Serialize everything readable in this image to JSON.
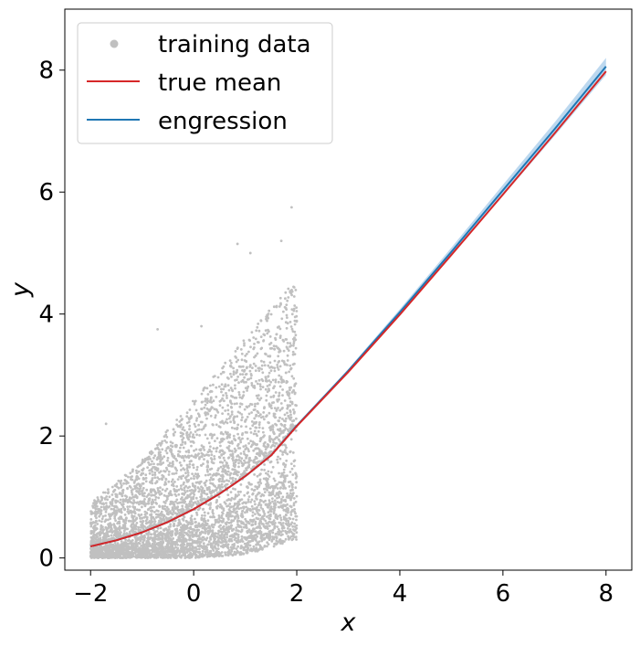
{
  "chart_data": {
    "type": "scatter",
    "title": "",
    "xlabel": "x",
    "ylabel": "y",
    "xlim": [
      -2.5,
      8.5
    ],
    "ylim": [
      -0.2,
      9.0
    ],
    "xticks": [
      -2,
      0,
      2,
      4,
      6,
      8
    ],
    "xtick_labels": [
      "−2",
      "0",
      "2",
      "4",
      "6",
      "8"
    ],
    "yticks": [
      0,
      2,
      4,
      6,
      8
    ],
    "ytick_labels": [
      "0",
      "2",
      "4",
      "6",
      "8"
    ],
    "grid": false,
    "legend_placement": "top-left",
    "series": [
      {
        "name": "training data",
        "kind": "scatter",
        "color": "#c0c0c0",
        "x_range": [
          -2,
          2
        ],
        "description_points": [
          {
            "x": -2.0,
            "y_low": 0.0,
            "y_high": 0.9
          },
          {
            "x": -1.0,
            "y_low": 0.0,
            "y_high": 1.6
          },
          {
            "x": 0.0,
            "y_low": 0.0,
            "y_high": 2.6
          },
          {
            "x": 1.0,
            "y_low": 0.05,
            "y_high": 3.6
          },
          {
            "x": 2.0,
            "y_low": 0.3,
            "y_high": 4.6
          }
        ],
        "outliers": [
          {
            "x": 1.9,
            "y": 5.75
          },
          {
            "x": 0.85,
            "y": 5.15
          },
          {
            "x": 1.7,
            "y": 5.2
          },
          {
            "x": 1.1,
            "y": 5.0
          },
          {
            "x": -0.7,
            "y": 3.75
          },
          {
            "x": 0.15,
            "y": 3.8
          },
          {
            "x": -1.7,
            "y": 2.2
          }
        ]
      },
      {
        "name": "true mean",
        "kind": "line",
        "color": "#d62728",
        "x": [
          -2,
          -1.5,
          -1,
          -0.5,
          0,
          0.5,
          1,
          1.5,
          2,
          3,
          4,
          5,
          6,
          7,
          8
        ],
        "y": [
          0.19,
          0.29,
          0.42,
          0.59,
          0.8,
          1.05,
          1.34,
          1.68,
          2.16,
          3.05,
          3.99,
          4.97,
          5.96,
          6.96,
          7.98
        ]
      },
      {
        "name": "engression",
        "kind": "line",
        "color": "#1f77b4",
        "band_color": "#9fc8e8",
        "x": [
          -2,
          -1.5,
          -1,
          -0.5,
          0,
          0.5,
          1,
          1.5,
          2,
          3,
          4,
          5,
          6,
          7,
          8
        ],
        "y": [
          0.19,
          0.29,
          0.42,
          0.59,
          0.8,
          1.05,
          1.34,
          1.68,
          2.17,
          3.07,
          4.03,
          5.02,
          6.03,
          7.03,
          8.06
        ],
        "band_width": [
          0.0,
          0.0,
          0.0,
          0.0,
          0.0,
          0.0,
          0.0,
          0.0,
          0.01,
          0.03,
          0.05,
          0.07,
          0.09,
          0.11,
          0.14
        ]
      }
    ]
  }
}
